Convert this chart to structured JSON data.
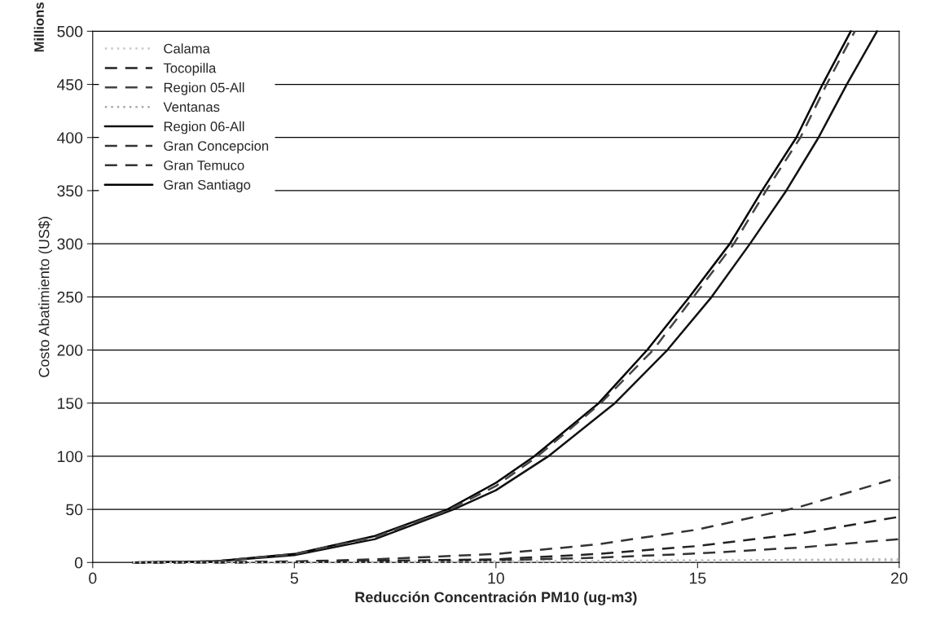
{
  "chart_data": {
    "type": "line",
    "xlabel": "Reducción Concentración PM10 (ug-m3)",
    "ylabel": "Costo Abatimiento (US$)",
    "annotations": [
      "Millions"
    ],
    "xlim": [
      0,
      20
    ],
    "xticks": [
      0,
      5,
      10,
      15,
      20
    ],
    "ylim": [
      0,
      500
    ],
    "yticks": [
      0,
      50,
      100,
      150,
      200,
      250,
      300,
      350,
      400,
      450,
      500
    ],
    "grid": "y",
    "legend": "top left",
    "marker": "none",
    "series": [
      {
        "name": "Calama",
        "color": "#c8c8c8",
        "line_style": "dotted",
        "x": [
          1,
          5,
          10,
          15,
          20
        ],
        "values": [
          0,
          0,
          0.5,
          1,
          2
        ]
      },
      {
        "name": "Tocopilla",
        "color": "#222222",
        "line_style": "dashed",
        "x": [
          1,
          3,
          5,
          7,
          10,
          12.5,
          15,
          17.5,
          20
        ],
        "values": [
          0,
          0,
          0.5,
          1.5,
          3,
          8,
          15.5,
          27,
          43
        ]
      },
      {
        "name": "Region 05-All",
        "color": "#444444",
        "line_style": "dashed",
        "x": [
          1,
          3,
          5,
          7,
          8.8,
          10,
          11,
          12.6,
          13.9,
          14.9,
          15.9,
          16.7,
          17.55,
          18.2,
          18.9
        ],
        "values": [
          0,
          1,
          8,
          24,
          49,
          72,
          99,
          150,
          200,
          250,
          300,
          350,
          400,
          450,
          500
        ]
      },
      {
        "name": "Ventanas",
        "color": "#aaaaaa",
        "line_style": "dotted",
        "x": [
          1,
          5,
          10,
          15,
          20
        ],
        "values": [
          0,
          0,
          1,
          2,
          3
        ]
      },
      {
        "name": "Region 06-All",
        "color": "#111111",
        "line_style": "solid",
        "x": [
          1,
          3,
          5,
          7,
          8.95,
          10,
          11.3,
          12.95,
          14.25,
          15.35,
          16.3,
          17.2,
          18.0,
          18.7,
          19.45
        ],
        "values": [
          0,
          1,
          7,
          22,
          50,
          68,
          100,
          150,
          200,
          250,
          300,
          350,
          400,
          450,
          500
        ]
      },
      {
        "name": "Gran Concepcion",
        "color": "#333333",
        "line_style": "dashed",
        "x": [
          1,
          3,
          5,
          7,
          10,
          12.5,
          15,
          17.5,
          20
        ],
        "values": [
          0,
          0.5,
          1,
          3,
          8,
          17,
          31,
          52,
          80
        ]
      },
      {
        "name": "Gran Temuco",
        "color": "#333333",
        "line_style": "dashed",
        "x": [
          1,
          3,
          5,
          7,
          10,
          12.5,
          15,
          17.5,
          20
        ],
        "values": [
          0,
          0,
          0.3,
          1,
          2,
          4.5,
          8.5,
          14,
          22
        ]
      },
      {
        "name": "Gran Santiago",
        "color": "#000000",
        "line_style": "solid",
        "x": [
          1,
          3,
          5,
          7,
          8.8,
          10,
          10.95,
          12.55,
          13.75,
          14.8,
          15.8,
          16.6,
          17.45,
          18.1,
          18.8
        ],
        "values": [
          0,
          1,
          8,
          25,
          50,
          75,
          100,
          150,
          200,
          250,
          300,
          350,
          400,
          450,
          500
        ]
      }
    ]
  }
}
